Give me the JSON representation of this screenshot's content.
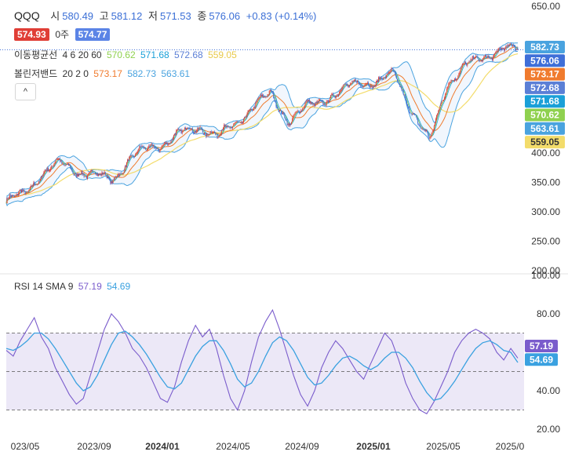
{
  "header": {
    "symbol": "QQQ",
    "open_label": "시",
    "open": "580.49",
    "high_label": "고",
    "high": "581.12",
    "low_label": "저",
    "low": "571.53",
    "close_label": "종",
    "close": "576.06",
    "change": "+0.83 (+0.14%)",
    "bid": "574.93",
    "qty_label": "0주",
    "ask": "574.77"
  },
  "ma_legend": {
    "label": "이동평균선",
    "params": "4 6 20 60",
    "values": [
      "570.62",
      "571.68",
      "572.68",
      "559.05"
    ]
  },
  "bb_legend": {
    "label": "볼린저밴드",
    "params": "20 2 0",
    "values": [
      "573.17",
      "582.73",
      "563.61"
    ]
  },
  "collapse_glyph": "^",
  "rsi_legend": {
    "label": "RSI 14 SMA 9",
    "values": [
      "57.19",
      "54.69"
    ]
  },
  "colors": {
    "up": "#e03e36",
    "down": "#3f6fd8",
    "ma4": "#8fd14f",
    "ma6": "#1aa0d8",
    "ma20": "#5b7fd6",
    "ma60": "#f3dc6b",
    "bb_mid": "#f07b2e",
    "bb_band": "#4aa3df",
    "rsi": "#7a5ccc",
    "rsi_sma": "#3aa1e0",
    "rsi_fill": "#ece8f7"
  },
  "chart_data": [
    {
      "type": "candlestick",
      "ylim": [
        200,
        650
      ],
      "yticks": [
        "650.00",
        "400.00",
        "350.00",
        "300.00",
        "250.00",
        "200.00"
      ],
      "xticks": [
        "023/05",
        "2023/09",
        "2024/01",
        "2024/05",
        "2024/09",
        "2025/01",
        "2025/05",
        "2025/0"
      ],
      "bold_xticks": [
        "2024/01",
        "2025/01"
      ],
      "close_path": [
        {
          "x": "2023/04",
          "y": 318
        },
        {
          "x": "2023/05",
          "y": 330
        },
        {
          "x": "2023/06",
          "y": 365
        },
        {
          "x": "2023/07",
          "y": 383
        },
        {
          "x": "2023/08",
          "y": 370
        },
        {
          "x": "2023/09",
          "y": 362
        },
        {
          "x": "2023/10",
          "y": 355
        },
        {
          "x": "2023/11",
          "y": 390
        },
        {
          "x": "2023/12",
          "y": 408
        },
        {
          "x": "2024/01",
          "y": 418
        },
        {
          "x": "2024/02",
          "y": 435
        },
        {
          "x": "2024/03",
          "y": 445
        },
        {
          "x": "2024/04",
          "y": 428
        },
        {
          "x": "2024/05",
          "y": 450
        },
        {
          "x": "2024/06",
          "y": 480
        },
        {
          "x": "2024/07",
          "y": 500
        },
        {
          "x": "2024/08",
          "y": 455
        },
        {
          "x": "2024/09",
          "y": 478
        },
        {
          "x": "2024/10",
          "y": 492
        },
        {
          "x": "2024/11",
          "y": 505
        },
        {
          "x": "2024/12",
          "y": 522
        },
        {
          "x": "2025/01",
          "y": 520
        },
        {
          "x": "2025/02",
          "y": 535
        },
        {
          "x": "2025/03",
          "y": 472
        },
        {
          "x": "2025/04",
          "y": 418
        },
        {
          "x": "2025/05",
          "y": 520
        },
        {
          "x": "2025/06",
          "y": 548
        },
        {
          "x": "2025/07",
          "y": 562
        },
        {
          "x": "2025/08",
          "y": 578
        },
        {
          "x": "2025/09",
          "y": 576
        }
      ],
      "tags": [
        {
          "name": "BB upper",
          "value": "582.73",
          "color": "#4aa3df"
        },
        {
          "name": "Close",
          "value": "576.06",
          "color": "#3f6fd8"
        },
        {
          "name": "BB mid",
          "value": "573.17",
          "color": "#f07b2e"
        },
        {
          "name": "MA20",
          "value": "572.68",
          "color": "#5b7fd6"
        },
        {
          "name": "MA6",
          "value": "571.68",
          "color": "#1aa0d8"
        },
        {
          "name": "MA4",
          "value": "570.62",
          "color": "#8fd14f"
        },
        {
          "name": "BB lower",
          "value": "563.61",
          "color": "#4aa3df"
        },
        {
          "name": "MA60",
          "value": "559.05",
          "color": "#f3dc6b"
        }
      ]
    },
    {
      "type": "line",
      "ylim": [
        20,
        100
      ],
      "yticks": [
        "100.00",
        "80.00",
        "40.00",
        "20.00"
      ],
      "bands": [
        30,
        50,
        70
      ],
      "series": [
        {
          "name": "RSI 14",
          "color": "#7a5ccc",
          "values": [
            61,
            58,
            66,
            72,
            78,
            68,
            62,
            52,
            45,
            38,
            33,
            36,
            48,
            60,
            72,
            80,
            76,
            70,
            62,
            58,
            52,
            44,
            36,
            34,
            42,
            55,
            66,
            74,
            68,
            72,
            62,
            48,
            36,
            30,
            40,
            55,
            68,
            76,
            82,
            72,
            60,
            48,
            38,
            32,
            40,
            52,
            60,
            66,
            62,
            56,
            50,
            46,
            54,
            62,
            70,
            66,
            56,
            44,
            36,
            30,
            28,
            34,
            42,
            50,
            60,
            66,
            70,
            72,
            70,
            67,
            60,
            56,
            62,
            57
          ]
        },
        {
          "name": "RSI SMA 9",
          "color": "#3aa1e0",
          "values": [
            62,
            61,
            63,
            66,
            70,
            70,
            67,
            62,
            56,
            50,
            44,
            40,
            42,
            48,
            56,
            64,
            70,
            71,
            68,
            64,
            59,
            53,
            47,
            42,
            41,
            44,
            51,
            58,
            63,
            66,
            66,
            61,
            54,
            46,
            42,
            44,
            50,
            58,
            65,
            68,
            66,
            61,
            54,
            47,
            43,
            44,
            48,
            53,
            57,
            58,
            56,
            53,
            51,
            53,
            57,
            60,
            60,
            57,
            52,
            45,
            39,
            35,
            36,
            40,
            45,
            51,
            57,
            62,
            65,
            66,
            64,
            61,
            60,
            54.69
          ]
        }
      ],
      "last_values": [
        {
          "value": "57.19",
          "color": "#7a5ccc"
        },
        {
          "value": "54.69",
          "color": "#3aa1e0"
        }
      ]
    }
  ]
}
